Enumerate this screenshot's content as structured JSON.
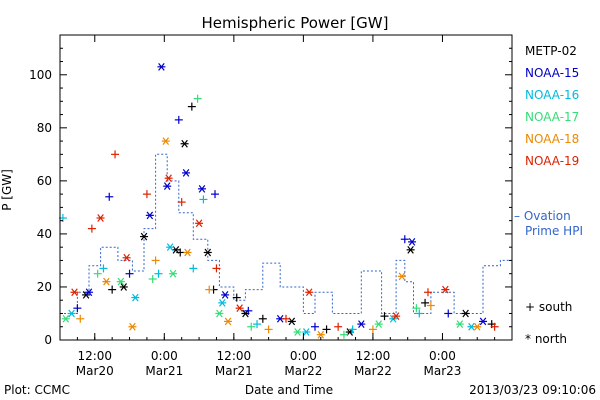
{
  "chart_data": {
    "type": "scatter",
    "title": "Hemispheric Power [GW]",
    "ylabel": "P [GW]",
    "xlabel": "Date and Time",
    "ylim": [
      0,
      115
    ],
    "xlim": [
      "2013-03-20 06:00",
      "2013-03-23 12:00"
    ],
    "yticks": [
      0,
      20,
      40,
      60,
      80,
      100
    ],
    "xticks": [
      {
        "time": "2013-03-20 12:00",
        "line1": "12:00",
        "line2": "Mar20"
      },
      {
        "time": "2013-03-21 00:00",
        "line1": "0:00",
        "line2": "Mar21"
      },
      {
        "time": "2013-03-21 12:00",
        "line1": "12:00",
        "line2": "Mar21"
      },
      {
        "time": "2013-03-22 00:00",
        "line1": "0:00",
        "line2": "Mar22"
      },
      {
        "time": "2013-03-22 12:00",
        "line1": "12:00",
        "line2": "Mar22"
      },
      {
        "time": "2013-03-23 00:00",
        "line1": "0:00",
        "line2": "Mar23"
      }
    ],
    "grid": false,
    "legend_position": "right",
    "symbol_legend": {
      "south": "+ south",
      "north": "* north"
    },
    "series": [
      {
        "name": "METP-02",
        "color": "#000000",
        "points": [
          {
            "t": "2013-03-20 10:30",
            "y": 17,
            "h": "north"
          },
          {
            "t": "2013-03-20 15:00",
            "y": 19,
            "h": "south"
          },
          {
            "t": "2013-03-20 17:00",
            "y": 20,
            "h": "north"
          },
          {
            "t": "2013-03-20 20:30",
            "y": 39,
            "h": "north"
          },
          {
            "t": "2013-03-21 02:00",
            "y": 34,
            "h": "north"
          },
          {
            "t": "2013-03-21 02:45",
            "y": 33,
            "h": "south"
          },
          {
            "t": "2013-03-21 03:30",
            "y": 74,
            "h": "north"
          },
          {
            "t": "2013-03-21 04:45",
            "y": 88,
            "h": "south"
          },
          {
            "t": "2013-03-21 07:30",
            "y": 33,
            "h": "north"
          },
          {
            "t": "2013-03-21 08:30",
            "y": 19,
            "h": "south"
          },
          {
            "t": "2013-03-21 12:30",
            "y": 16,
            "h": "south"
          },
          {
            "t": "2013-03-21 14:00",
            "y": 10,
            "h": "north"
          },
          {
            "t": "2013-03-21 17:00",
            "y": 8,
            "h": "south"
          },
          {
            "t": "2013-03-21 22:00",
            "y": 7,
            "h": "north"
          },
          {
            "t": "2013-03-22 04:00",
            "y": 4,
            "h": "south"
          },
          {
            "t": "2013-03-22 08:00",
            "y": 3,
            "h": "north"
          },
          {
            "t": "2013-03-22 14:00",
            "y": 9,
            "h": "south"
          },
          {
            "t": "2013-03-22 18:30",
            "y": 34,
            "h": "north"
          },
          {
            "t": "2013-03-22 21:00",
            "y": 14,
            "h": "south"
          },
          {
            "t": "2013-03-23 04:00",
            "y": 10,
            "h": "north"
          },
          {
            "t": "2013-03-23 08:30",
            "y": 6,
            "h": "south"
          }
        ]
      },
      {
        "name": "NOAA-15",
        "color": "#0000cc",
        "points": [
          {
            "t": "2013-03-20 09:00",
            "y": 12,
            "h": "south"
          },
          {
            "t": "2013-03-20 11:00",
            "y": 18,
            "h": "north"
          },
          {
            "t": "2013-03-20 14:30",
            "y": 54,
            "h": "south"
          },
          {
            "t": "2013-03-20 18:00",
            "y": 25,
            "h": "south"
          },
          {
            "t": "2013-03-20 21:30",
            "y": 47,
            "h": "north"
          },
          {
            "t": "2013-03-20 23:30",
            "y": 103,
            "h": "north"
          },
          {
            "t": "2013-03-21 00:30",
            "y": 58,
            "h": "north"
          },
          {
            "t": "2013-03-21 02:30",
            "y": 83,
            "h": "south"
          },
          {
            "t": "2013-03-21 03:45",
            "y": 63,
            "h": "north"
          },
          {
            "t": "2013-03-21 06:30",
            "y": 57,
            "h": "north"
          },
          {
            "t": "2013-03-21 08:45",
            "y": 55,
            "h": "south"
          },
          {
            "t": "2013-03-21 10:30",
            "y": 17,
            "h": "north"
          },
          {
            "t": "2013-03-21 14:30",
            "y": 11,
            "h": "south"
          },
          {
            "t": "2013-03-21 20:00",
            "y": 8,
            "h": "north"
          },
          {
            "t": "2013-03-22 02:00",
            "y": 5,
            "h": "south"
          },
          {
            "t": "2013-03-22 10:00",
            "y": 6,
            "h": "north"
          },
          {
            "t": "2013-03-22 17:30",
            "y": 38,
            "h": "south"
          },
          {
            "t": "2013-03-22 18:45",
            "y": 37,
            "h": "north"
          },
          {
            "t": "2013-03-23 01:00",
            "y": 10,
            "h": "south"
          },
          {
            "t": "2013-03-23 07:00",
            "y": 7,
            "h": "north"
          }
        ]
      },
      {
        "name": "NOAA-16",
        "color": "#00bbdd",
        "points": [
          {
            "t": "2013-03-20 06:30",
            "y": 46,
            "h": "south"
          },
          {
            "t": "2013-03-20 08:00",
            "y": 10,
            "h": "north"
          },
          {
            "t": "2013-03-20 13:30",
            "y": 27,
            "h": "south"
          },
          {
            "t": "2013-03-20 19:00",
            "y": 16,
            "h": "north"
          },
          {
            "t": "2013-03-20 23:00",
            "y": 25,
            "h": "south"
          },
          {
            "t": "2013-03-21 01:00",
            "y": 35,
            "h": "north"
          },
          {
            "t": "2013-03-21 05:00",
            "y": 27,
            "h": "south"
          },
          {
            "t": "2013-03-21 06:45",
            "y": 53,
            "h": "south"
          },
          {
            "t": "2013-03-21 10:00",
            "y": 14,
            "h": "north"
          },
          {
            "t": "2013-03-21 16:00",
            "y": 6,
            "h": "south"
          },
          {
            "t": "2013-03-22 00:30",
            "y": 3,
            "h": "north"
          },
          {
            "t": "2013-03-22 08:30",
            "y": 4,
            "h": "south"
          },
          {
            "t": "2013-03-22 15:30",
            "y": 8,
            "h": "north"
          },
          {
            "t": "2013-03-22 20:00",
            "y": 10,
            "h": "south"
          },
          {
            "t": "2013-03-23 05:00",
            "y": 5,
            "h": "north"
          }
        ]
      },
      {
        "name": "NOAA-17",
        "color": "#33dd77",
        "points": [
          {
            "t": "2013-03-20 07:00",
            "y": 8,
            "h": "north"
          },
          {
            "t": "2013-03-20 12:30",
            "y": 25,
            "h": "south"
          },
          {
            "t": "2013-03-20 16:30",
            "y": 22,
            "h": "north"
          },
          {
            "t": "2013-03-20 22:00",
            "y": 23,
            "h": "south"
          },
          {
            "t": "2013-03-21 01:30",
            "y": 25,
            "h": "north"
          },
          {
            "t": "2013-03-21 05:45",
            "y": 91,
            "h": "south"
          },
          {
            "t": "2013-03-21 09:30",
            "y": 10,
            "h": "north"
          },
          {
            "t": "2013-03-21 15:00",
            "y": 5,
            "h": "south"
          },
          {
            "t": "2013-03-21 23:00",
            "y": 3,
            "h": "north"
          },
          {
            "t": "2013-03-22 07:00",
            "y": 2,
            "h": "south"
          },
          {
            "t": "2013-03-22 13:00",
            "y": 6,
            "h": "north"
          },
          {
            "t": "2013-03-22 19:30",
            "y": 12,
            "h": "south"
          },
          {
            "t": "2013-03-23 03:00",
            "y": 6,
            "h": "north"
          }
        ]
      },
      {
        "name": "NOAA-18",
        "color": "#ee8800",
        "points": [
          {
            "t": "2013-03-20 09:30",
            "y": 8,
            "h": "south"
          },
          {
            "t": "2013-03-20 14:00",
            "y": 22,
            "h": "north"
          },
          {
            "t": "2013-03-20 18:30",
            "y": 5,
            "h": "north"
          },
          {
            "t": "2013-03-20 22:30",
            "y": 30,
            "h": "south"
          },
          {
            "t": "2013-03-21 00:15",
            "y": 75,
            "h": "north"
          },
          {
            "t": "2013-03-21 04:00",
            "y": 33,
            "h": "north"
          },
          {
            "t": "2013-03-21 07:45",
            "y": 19,
            "h": "south"
          },
          {
            "t": "2013-03-21 11:00",
            "y": 7,
            "h": "north"
          },
          {
            "t": "2013-03-21 18:00",
            "y": 4,
            "h": "south"
          },
          {
            "t": "2013-03-22 03:00",
            "y": 2,
            "h": "north"
          },
          {
            "t": "2013-03-22 12:00",
            "y": 4,
            "h": "south"
          },
          {
            "t": "2013-03-22 17:00",
            "y": 24,
            "h": "north"
          },
          {
            "t": "2013-03-22 22:00",
            "y": 13,
            "h": "south"
          },
          {
            "t": "2013-03-23 06:00",
            "y": 5,
            "h": "north"
          }
        ]
      },
      {
        "name": "NOAA-19",
        "color": "#dd2200",
        "points": [
          {
            "t": "2013-03-20 08:30",
            "y": 18,
            "h": "north"
          },
          {
            "t": "2013-03-20 11:30",
            "y": 42,
            "h": "south"
          },
          {
            "t": "2013-03-20 13:00",
            "y": 46,
            "h": "north"
          },
          {
            "t": "2013-03-20 15:30",
            "y": 70,
            "h": "south"
          },
          {
            "t": "2013-03-20 17:30",
            "y": 31,
            "h": "north"
          },
          {
            "t": "2013-03-20 21:00",
            "y": 55,
            "h": "south"
          },
          {
            "t": "2013-03-21 00:45",
            "y": 61,
            "h": "north"
          },
          {
            "t": "2013-03-21 03:00",
            "y": 52,
            "h": "south"
          },
          {
            "t": "2013-03-21 06:00",
            "y": 44,
            "h": "north"
          },
          {
            "t": "2013-03-21 09:00",
            "y": 27,
            "h": "south"
          },
          {
            "t": "2013-03-21 13:00",
            "y": 12,
            "h": "north"
          },
          {
            "t": "2013-03-21 21:00",
            "y": 8,
            "h": "south"
          },
          {
            "t": "2013-03-22 01:00",
            "y": 18,
            "h": "north"
          },
          {
            "t": "2013-03-22 06:00",
            "y": 5,
            "h": "south"
          },
          {
            "t": "2013-03-22 16:00",
            "y": 9,
            "h": "north"
          },
          {
            "t": "2013-03-22 21:30",
            "y": 18,
            "h": "south"
          },
          {
            "t": "2013-03-23 00:30",
            "y": 19,
            "h": "north"
          },
          {
            "t": "2013-03-23 09:00",
            "y": 5,
            "h": "south"
          }
        ]
      }
    ],
    "ovation": {
      "label_line1": "– Ovation",
      "label_line2": "Prime HPI",
      "color": "#3366cc",
      "steps": [
        {
          "t": "2013-03-20 06:00",
          "y": 10
        },
        {
          "t": "2013-03-20 09:00",
          "y": 18
        },
        {
          "t": "2013-03-20 11:00",
          "y": 28
        },
        {
          "t": "2013-03-20 13:00",
          "y": 35
        },
        {
          "t": "2013-03-20 16:00",
          "y": 30
        },
        {
          "t": "2013-03-20 18:30",
          "y": 26
        },
        {
          "t": "2013-03-20 20:30",
          "y": 42
        },
        {
          "t": "2013-03-20 22:30",
          "y": 70
        },
        {
          "t": "2013-03-21 00:30",
          "y": 60
        },
        {
          "t": "2013-03-21 02:30",
          "y": 48
        },
        {
          "t": "2013-03-21 05:00",
          "y": 38
        },
        {
          "t": "2013-03-21 07:30",
          "y": 30
        },
        {
          "t": "2013-03-21 09:30",
          "y": 20
        },
        {
          "t": "2013-03-21 12:00",
          "y": 15
        },
        {
          "t": "2013-03-21 14:00",
          "y": 19
        },
        {
          "t": "2013-03-21 17:00",
          "y": 29
        },
        {
          "t": "2013-03-21 20:00",
          "y": 20
        },
        {
          "t": "2013-03-22 00:00",
          "y": 10
        },
        {
          "t": "2013-03-22 02:00",
          "y": 18
        },
        {
          "t": "2013-03-22 05:00",
          "y": 10
        },
        {
          "t": "2013-03-22 10:00",
          "y": 26
        },
        {
          "t": "2013-03-22 13:30",
          "y": 10
        },
        {
          "t": "2013-03-22 16:00",
          "y": 30
        },
        {
          "t": "2013-03-22 17:30",
          "y": 22
        },
        {
          "t": "2013-03-22 19:00",
          "y": 10
        },
        {
          "t": "2013-03-22 22:00",
          "y": 18
        },
        {
          "t": "2013-03-23 02:00",
          "y": 10
        },
        {
          "t": "2013-03-23 07:00",
          "y": 28
        },
        {
          "t": "2013-03-23 10:00",
          "y": 30
        }
      ]
    }
  },
  "footer": {
    "source": "Plot: CCMC",
    "timestamp": "2013/03/23 09:10:06"
  }
}
